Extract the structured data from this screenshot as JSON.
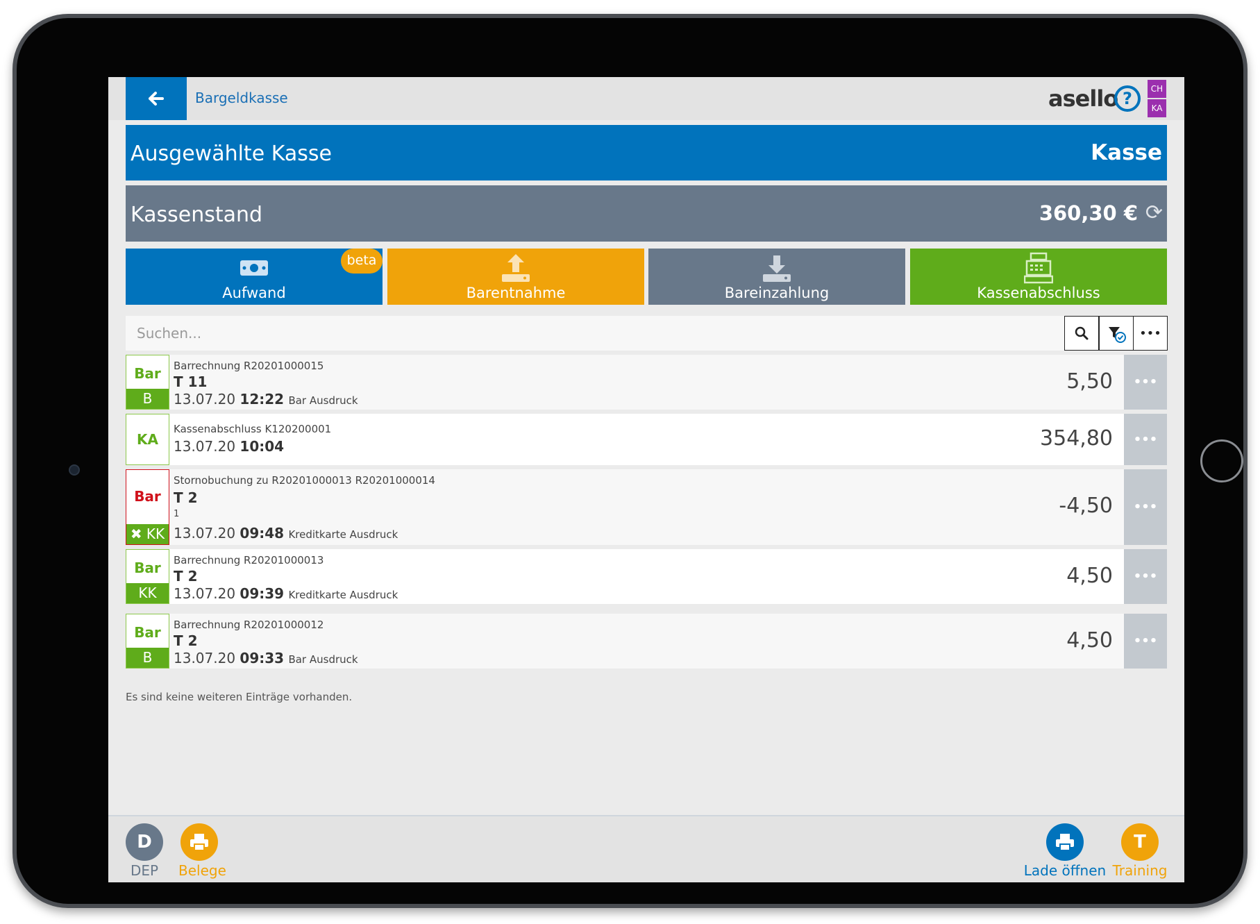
{
  "header": {
    "back_icon": "arrow-left-icon",
    "breadcrumb": "Bargeldkasse",
    "logo": "asello",
    "help_icon": "question-icon",
    "badges": [
      "CH",
      "KA"
    ]
  },
  "selected_register": {
    "label": "Ausgewählte Kasse",
    "value": "Kasse"
  },
  "cash_balance": {
    "label": "Kassenstand",
    "value": "360,30 €",
    "refresh_icon": "refresh-icon"
  },
  "actions": [
    {
      "label": "Aufwand",
      "icon": "money-icon",
      "badge": "beta",
      "color": "#0173bc"
    },
    {
      "label": "Barentnahme",
      "icon": "upload-icon",
      "color": "#f0a30a"
    },
    {
      "label": "Bareinzahlung",
      "icon": "download-icon",
      "color": "#68788a"
    },
    {
      "label": "Kassenabschluss",
      "icon": "cash-register-icon",
      "color": "#5fac1b"
    }
  ],
  "search": {
    "placeholder": "Suchen...",
    "buttons": [
      "search-icon",
      "filter-icon",
      "more-icon"
    ]
  },
  "transactions": [
    {
      "tag": "Bar",
      "subtag": "B",
      "title": "Barrechnung R20201000015",
      "table": "T 11",
      "date": "13.07.20",
      "time": "12:22",
      "info": "Bar Ausdruck",
      "amount": "5,50"
    },
    {
      "tag": "KA",
      "title": "Kassenabschluss K120200001",
      "date": "13.07.20",
      "time": "10:04",
      "amount": "354,80"
    },
    {
      "tag": "Bar",
      "subtag": "✖ KK",
      "title": "Stornobuchung zu R20201000013 R20201000014",
      "table": "T 2",
      "extra": "1",
      "date": "13.07.20",
      "time": "09:48",
      "info": "Kreditkarte Ausdruck",
      "amount": "-4,50"
    },
    {
      "tag": "Bar",
      "subtag": "KK",
      "title": "Barrechnung R20201000013",
      "table": "T 2",
      "date": "13.07.20",
      "time": "09:39",
      "info": "Kreditkarte Ausdruck",
      "amount": "4,50"
    },
    {
      "tag": "Bar",
      "subtag": "B",
      "title": "Barrechnung R20201000012",
      "table": "T 2",
      "date": "13.07.20",
      "time": "09:33",
      "info": "Bar Ausdruck",
      "amount": "4,50"
    }
  ],
  "list_end_text": "Es sind keine weiteren Einträge vorhanden.",
  "footer": {
    "left": [
      {
        "circle": "D",
        "label": "DEP",
        "color": "#68788a"
      },
      {
        "circle": "printer-icon",
        "label": "Belege",
        "color": "#f0a30a"
      }
    ],
    "right": [
      {
        "circle": "printer-icon",
        "label": "Lade öffnen",
        "color": "#0173bc"
      },
      {
        "circle": "T",
        "label": "Training",
        "color": "#f0a30a"
      }
    ]
  }
}
